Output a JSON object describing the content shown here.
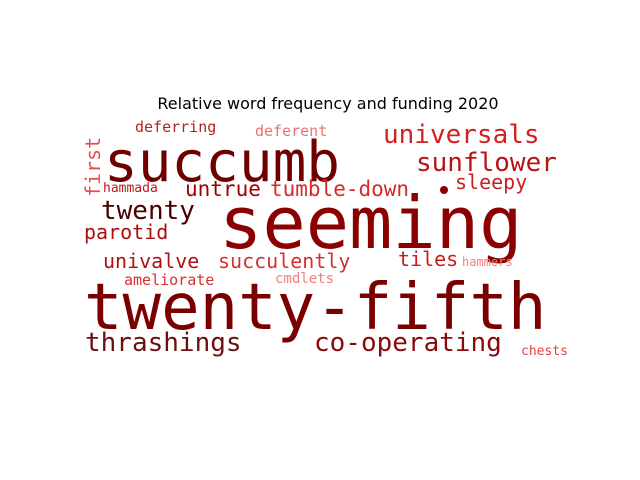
{
  "chart_data": {
    "type": "wordcloud",
    "title": "Relative word frequency and funding 2020",
    "words": [
      {
        "text": "seeming",
        "color": "#8b0000"
      },
      {
        "text": "twenty-fifth",
        "color": "#7a0000"
      },
      {
        "text": "succumb",
        "color": "#6e0000"
      },
      {
        "text": "universals",
        "color": "#d42020"
      },
      {
        "text": "sunflower",
        "color": "#b81414"
      },
      {
        "text": "thrashings",
        "color": "#6b1010"
      },
      {
        "text": "co-operating",
        "color": "#8a0a0a"
      },
      {
        "text": "twenty",
        "color": "#4a0000"
      },
      {
        "text": "tumble-down",
        "color": "#d42a2a"
      },
      {
        "text": "untrue",
        "color": "#a00000"
      },
      {
        "text": "sleepy",
        "color": "#cc2020"
      },
      {
        "text": "parotid",
        "color": "#aa1010"
      },
      {
        "text": "univalve",
        "color": "#b01010"
      },
      {
        "text": "succulently",
        "color": "#d43030"
      },
      {
        "text": "tiles",
        "color": "#cc1a1a"
      },
      {
        "text": "first",
        "color": "#e05050"
      },
      {
        "text": "deferring",
        "color": "#b52020"
      },
      {
        "text": "deferent",
        "color": "#f07070"
      },
      {
        "text": "hammada",
        "color": "#c01818"
      },
      {
        "text": "ameliorate",
        "color": "#d83030"
      },
      {
        "text": "cmdlets",
        "color": "#f08080"
      },
      {
        "text": "hammers",
        "color": "#f28080"
      },
      {
        "text": "chests",
        "color": "#e04040"
      }
    ]
  }
}
